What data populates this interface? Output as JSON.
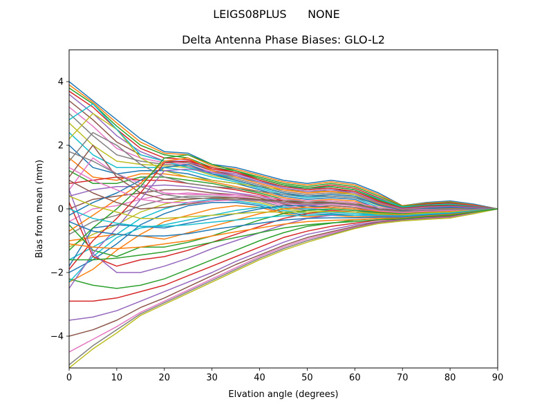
{
  "figure": {
    "suptitle": "LEIGS08PLUS      NONE"
  },
  "chart_data": {
    "type": "line",
    "title": "Delta Antenna Phase Biases: GLO-L2",
    "xlabel": "Elvation angle (degrees)",
    "ylabel": "Bias from mean (mm)",
    "xlim": [
      0,
      90
    ],
    "ylim": [
      -5,
      5
    ],
    "xticks": [
      0,
      10,
      20,
      30,
      40,
      50,
      60,
      70,
      80,
      90
    ],
    "yticks": [
      -4,
      -2,
      0,
      2,
      4
    ],
    "xtick_labels": [
      "0",
      "10",
      "20",
      "30",
      "40",
      "50",
      "60",
      "70",
      "80",
      "90"
    ],
    "ytick_labels": [
      "−4",
      "−2",
      "0",
      "2",
      "4"
    ],
    "grid": false,
    "legend": "none",
    "palette": [
      "#1f77b4",
      "#ff7f0e",
      "#2ca02c",
      "#d62728",
      "#9467bd",
      "#8c564b",
      "#e377c2",
      "#7f7f7f",
      "#bcbd22",
      "#17becf"
    ],
    "x": [
      0,
      5,
      10,
      15,
      20,
      25,
      30,
      35,
      40,
      45,
      50,
      55,
      60,
      65,
      70,
      75,
      80,
      85,
      90
    ],
    "series": [
      {
        "values": [
          4.0,
          3.4,
          2.8,
          2.2,
          1.8,
          1.75,
          1.4,
          1.3,
          1.1,
          0.9,
          0.8,
          0.9,
          0.8,
          0.5,
          0.1,
          0.2,
          0.25,
          0.15,
          0.0
        ]
      },
      {
        "values": [
          3.9,
          3.35,
          2.7,
          2.1,
          1.75,
          1.7,
          1.35,
          1.25,
          1.05,
          0.85,
          0.75,
          0.85,
          0.75,
          0.45,
          0.1,
          0.18,
          0.22,
          0.12,
          0.0
        ]
      },
      {
        "values": [
          3.8,
          3.3,
          2.6,
          2.0,
          1.7,
          1.6,
          1.3,
          1.2,
          1.0,
          0.8,
          0.7,
          0.8,
          0.7,
          0.4,
          0.08,
          0.16,
          0.2,
          0.1,
          0.0
        ]
      },
      {
        "values": [
          3.7,
          3.2,
          2.5,
          1.9,
          1.6,
          1.55,
          1.25,
          1.15,
          0.95,
          0.75,
          0.65,
          0.75,
          0.65,
          0.35,
          0.05,
          0.15,
          0.18,
          0.1,
          0.0
        ]
      },
      {
        "values": [
          3.6,
          3.0,
          2.3,
          1.8,
          1.5,
          1.5,
          1.2,
          1.1,
          0.9,
          0.7,
          0.6,
          0.7,
          0.6,
          0.3,
          0.05,
          0.12,
          0.15,
          0.08,
          0.0
        ]
      },
      {
        "values": [
          3.4,
          2.8,
          2.1,
          1.7,
          1.5,
          1.45,
          1.2,
          1.05,
          0.85,
          0.65,
          0.55,
          0.6,
          0.55,
          0.25,
          0.02,
          0.1,
          0.12,
          0.06,
          0.0
        ]
      },
      {
        "values": [
          3.2,
          2.6,
          1.9,
          1.6,
          1.45,
          1.4,
          1.15,
          1.0,
          0.8,
          0.6,
          0.5,
          0.55,
          0.5,
          0.2,
          0.0,
          0.08,
          0.1,
          0.05,
          0.0
        ]
      },
      {
        "values": [
          3.0,
          2.3,
          1.7,
          1.5,
          1.4,
          1.35,
          1.1,
          0.95,
          0.75,
          0.55,
          0.45,
          0.5,
          0.45,
          0.15,
          -0.02,
          0.06,
          0.08,
          0.04,
          0.0
        ]
      },
      {
        "values": [
          2.7,
          2.0,
          1.5,
          1.4,
          1.35,
          1.3,
          1.05,
          0.9,
          0.7,
          0.5,
          0.4,
          0.45,
          0.4,
          0.1,
          -0.04,
          0.04,
          0.06,
          0.03,
          0.0
        ]
      },
      {
        "values": [
          2.4,
          1.7,
          1.3,
          1.3,
          1.3,
          1.2,
          1.0,
          0.85,
          0.65,
          0.45,
          0.35,
          0.4,
          0.35,
          0.05,
          -0.05,
          0.02,
          0.04,
          0.02,
          0.0
        ]
      },
      {
        "values": [
          2.0,
          1.3,
          1.1,
          1.2,
          1.2,
          1.1,
          0.9,
          0.8,
          0.6,
          0.4,
          0.3,
          0.35,
          0.3,
          0.0,
          -0.06,
          0.0,
          0.02,
          0.01,
          0.0
        ]
      },
      {
        "values": [
          1.6,
          1.0,
          0.9,
          1.1,
          1.1,
          1.0,
          0.85,
          0.7,
          0.55,
          0.35,
          0.25,
          0.3,
          0.25,
          -0.02,
          -0.08,
          -0.02,
          0.0,
          0.0,
          0.0
        ]
      },
      {
        "values": [
          1.2,
          0.8,
          0.8,
          1.0,
          1.0,
          0.9,
          0.8,
          0.65,
          0.5,
          0.3,
          0.2,
          0.25,
          0.2,
          -0.05,
          -0.1,
          -0.04,
          -0.02,
          -0.01,
          0.0
        ]
      },
      {
        "values": [
          0.8,
          0.9,
          1.0,
          0.9,
          0.9,
          0.8,
          0.7,
          0.6,
          0.45,
          0.25,
          0.15,
          0.2,
          0.15,
          -0.08,
          -0.12,
          -0.06,
          -0.04,
          -0.02,
          0.0
        ]
      },
      {
        "values": [
          0.4,
          0.6,
          0.7,
          0.7,
          0.75,
          0.7,
          0.6,
          0.5,
          0.4,
          0.2,
          0.1,
          0.15,
          0.1,
          -0.1,
          -0.14,
          -0.08,
          -0.06,
          -0.03,
          0.0
        ]
      },
      {
        "values": [
          0.0,
          0.3,
          0.4,
          0.5,
          0.6,
          0.6,
          0.5,
          0.45,
          0.35,
          0.15,
          0.05,
          0.1,
          0.05,
          -0.12,
          -0.16,
          -0.1,
          -0.08,
          -0.04,
          0.0
        ]
      },
      {
        "values": [
          -0.4,
          0.0,
          0.1,
          0.3,
          0.45,
          0.5,
          0.45,
          0.4,
          0.3,
          0.1,
          0.0,
          0.05,
          0.0,
          -0.14,
          -0.18,
          -0.12,
          -0.1,
          -0.05,
          0.0
        ]
      },
      {
        "values": [
          -0.8,
          -0.4,
          -0.2,
          0.1,
          0.3,
          0.4,
          0.4,
          0.35,
          0.25,
          0.05,
          -0.05,
          0.0,
          -0.05,
          -0.16,
          -0.2,
          -0.14,
          -0.12,
          -0.06,
          0.0
        ]
      },
      {
        "values": [
          -1.2,
          -0.8,
          -0.5,
          -0.1,
          0.15,
          0.3,
          0.35,
          0.3,
          0.2,
          0.0,
          -0.1,
          -0.05,
          -0.1,
          -0.18,
          -0.22,
          -0.16,
          -0.14,
          -0.07,
          0.0
        ]
      },
      {
        "values": [
          -1.6,
          -1.2,
          -0.8,
          -0.3,
          0.0,
          0.2,
          0.3,
          0.25,
          0.15,
          -0.05,
          -0.15,
          -0.1,
          -0.15,
          -0.2,
          -0.24,
          -0.18,
          -0.16,
          -0.08,
          0.0
        ]
      },
      {
        "values": [
          -2.0,
          -1.6,
          -1.1,
          -0.5,
          -0.15,
          0.1,
          0.2,
          0.2,
          0.1,
          -0.1,
          -0.2,
          -0.15,
          -0.2,
          -0.22,
          -0.26,
          -0.2,
          -0.18,
          -0.09,
          0.0
        ]
      },
      {
        "values": [
          -2.3,
          -1.9,
          -1.3,
          -0.8,
          -0.4,
          -0.2,
          0.0,
          0.1,
          0.05,
          -0.15,
          -0.25,
          -0.2,
          -0.25,
          -0.25,
          -0.28,
          -0.22,
          -0.2,
          -0.1,
          0.0
        ]
      },
      {
        "values": [
          -2.2,
          -2.4,
          -2.5,
          -2.4,
          -2.2,
          -1.9,
          -1.6,
          -1.3,
          -1.0,
          -0.75,
          -0.55,
          -0.45,
          -0.35,
          -0.3,
          -0.3,
          -0.24,
          -0.22,
          -0.11,
          0.0
        ]
      },
      {
        "values": [
          -2.9,
          -2.9,
          -2.8,
          -2.6,
          -2.4,
          -2.1,
          -1.8,
          -1.5,
          -1.2,
          -0.9,
          -0.7,
          -0.55,
          -0.45,
          -0.35,
          -0.32,
          -0.26,
          -0.24,
          -0.12,
          0.0
        ]
      },
      {
        "values": [
          -3.5,
          -3.4,
          -3.2,
          -2.9,
          -2.6,
          -2.3,
          -2.0,
          -1.65,
          -1.35,
          -1.05,
          -0.8,
          -0.65,
          -0.5,
          -0.4,
          -0.34,
          -0.28,
          -0.25,
          -0.13,
          0.0
        ]
      },
      {
        "values": [
          -4.0,
          -3.8,
          -3.5,
          -3.1,
          -2.8,
          -2.45,
          -2.1,
          -1.75,
          -1.45,
          -1.15,
          -0.9,
          -0.72,
          -0.55,
          -0.42,
          -0.35,
          -0.3,
          -0.26,
          -0.14,
          0.0
        ]
      },
      {
        "values": [
          -4.5,
          -4.1,
          -3.7,
          -3.25,
          -2.9,
          -2.55,
          -2.2,
          -1.85,
          -1.5,
          -1.2,
          -0.95,
          -0.76,
          -0.58,
          -0.44,
          -0.36,
          -0.31,
          -0.27,
          -0.14,
          0.0
        ]
      },
      {
        "values": [
          -4.9,
          -4.3,
          -3.8,
          -3.3,
          -2.95,
          -2.6,
          -2.25,
          -1.9,
          -1.55,
          -1.25,
          -1.0,
          -0.8,
          -0.6,
          -0.45,
          -0.37,
          -0.32,
          -0.28,
          -0.15,
          0.0
        ]
      },
      {
        "values": [
          -5.0,
          -4.4,
          -3.9,
          -3.35,
          -3.0,
          -2.65,
          -2.3,
          -1.95,
          -1.6,
          -1.3,
          -1.05,
          -0.83,
          -0.62,
          -0.46,
          -0.38,
          -0.33,
          -0.29,
          -0.15,
          0.0
        ]
      },
      {
        "values": [
          -2.3,
          -1.5,
          -0.9,
          -0.6,
          -0.5,
          -0.35,
          -0.2,
          -0.05,
          0.05,
          0.05,
          0.0,
          -0.05,
          -0.1,
          -0.2,
          -0.25,
          -0.2,
          -0.18,
          -0.09,
          0.0
        ]
      },
      {
        "values": [
          -1.8,
          -0.6,
          -0.5,
          -0.55,
          -0.6,
          -0.45,
          -0.3,
          -0.15,
          0.0,
          0.1,
          0.1,
          0.05,
          0.0,
          -0.1,
          -0.15,
          -0.12,
          -0.1,
          -0.05,
          0.0
        ]
      },
      {
        "values": [
          -1.0,
          -0.9,
          -0.8,
          -0.85,
          -0.95,
          -0.75,
          -0.55,
          -0.35,
          -0.15,
          0.0,
          0.05,
          0.05,
          0.0,
          -0.08,
          -0.12,
          -0.1,
          -0.08,
          -0.04,
          0.0
        ]
      },
      {
        "values": [
          -0.5,
          -1.3,
          -1.5,
          -1.2,
          -1.2,
          -1.05,
          -0.85,
          -0.6,
          -0.35,
          -0.15,
          -0.05,
          0.0,
          -0.05,
          -0.12,
          -0.16,
          -0.12,
          -0.1,
          -0.05,
          0.0
        ]
      },
      {
        "values": [
          0.2,
          -1.5,
          -1.8,
          -1.6,
          -1.5,
          -1.3,
          -1.05,
          -0.8,
          -0.55,
          -0.3,
          -0.15,
          -0.05,
          -0.1,
          -0.15,
          -0.2,
          -0.15,
          -0.12,
          -0.06,
          0.0
        ]
      },
      {
        "values": [
          0.6,
          -1.4,
          -2.0,
          -2.0,
          -1.8,
          -1.55,
          -1.25,
          -1.0,
          -0.75,
          -0.5,
          -0.3,
          -0.2,
          -0.2,
          -0.22,
          -0.25,
          -0.2,
          -0.16,
          -0.08,
          0.0
        ]
      },
      {
        "values": [
          1.0,
          2.0,
          1.0,
          0.5,
          0.3,
          0.3,
          0.35,
          0.35,
          0.3,
          0.25,
          0.2,
          0.2,
          0.15,
          0.0,
          -0.05,
          -0.05,
          -0.04,
          -0.02,
          0.0
        ]
      },
      {
        "values": [
          0.6,
          1.6,
          1.1,
          0.8,
          0.5,
          0.45,
          0.45,
          0.45,
          0.4,
          0.3,
          0.25,
          0.25,
          0.2,
          0.05,
          -0.03,
          -0.02,
          -0.02,
          -0.01,
          0.0
        ]
      },
      {
        "values": [
          1.5,
          2.4,
          2.0,
          1.4,
          1.0,
          0.8,
          0.7,
          0.65,
          0.55,
          0.45,
          0.4,
          0.4,
          0.35,
          0.15,
          0.0,
          0.04,
          0.05,
          0.02,
          0.0
        ]
      },
      {
        "values": [
          2.2,
          3.0,
          2.5,
          1.6,
          1.2,
          1.0,
          0.9,
          0.8,
          0.7,
          0.6,
          0.55,
          0.55,
          0.45,
          0.22,
          0.04,
          0.08,
          0.1,
          0.05,
          0.0
        ]
      },
      {
        "values": [
          2.8,
          3.3,
          2.5,
          1.7,
          1.5,
          1.3,
          1.1,
          1.0,
          0.85,
          0.7,
          0.65,
          0.7,
          0.6,
          0.32,
          0.06,
          0.12,
          0.15,
          0.07,
          0.0
        ]
      },
      {
        "values": [
          -0.2,
          0.2,
          0.5,
          0.9,
          1.3,
          1.4,
          1.1,
          0.9,
          0.7,
          0.5,
          0.4,
          0.45,
          0.4,
          0.12,
          -0.04,
          0.03,
          0.05,
          0.02,
          0.0
        ]
      },
      {
        "values": [
          -0.7,
          -0.2,
          0.3,
          0.8,
          1.5,
          1.6,
          1.2,
          1.0,
          0.8,
          0.6,
          0.5,
          0.55,
          0.5,
          0.18,
          -0.02,
          0.05,
          0.08,
          0.04,
          0.0
        ]
      },
      {
        "values": [
          -1.3,
          -0.6,
          0.0,
          0.7,
          1.6,
          1.7,
          1.4,
          1.2,
          0.95,
          0.75,
          0.65,
          0.7,
          0.6,
          0.28,
          0.03,
          0.1,
          0.12,
          0.06,
          0.0
        ]
      },
      {
        "values": [
          -1.9,
          -1.0,
          -0.3,
          0.5,
          1.45,
          1.5,
          1.3,
          1.15,
          0.9,
          0.7,
          0.6,
          0.65,
          0.55,
          0.24,
          0.02,
          0.08,
          0.1,
          0.05,
          0.0
        ]
      },
      {
        "values": [
          -2.5,
          -1.4,
          -0.6,
          0.3,
          1.2,
          1.25,
          1.15,
          1.05,
          0.85,
          0.65,
          0.55,
          0.6,
          0.5,
          0.2,
          0.0,
          0.06,
          0.08,
          0.04,
          0.0
        ]
      },
      {
        "values": [
          0.9,
          0.5,
          0.2,
          0.0,
          0.05,
          0.15,
          0.25,
          0.3,
          0.28,
          0.2,
          0.15,
          0.18,
          0.12,
          -0.05,
          -0.1,
          -0.06,
          -0.04,
          -0.02,
          0.0
        ]
      },
      {
        "values": [
          1.3,
          0.9,
          0.6,
          0.3,
          0.2,
          0.2,
          0.25,
          0.28,
          0.25,
          0.18,
          0.12,
          0.15,
          0.1,
          -0.06,
          -0.11,
          -0.07,
          -0.05,
          -0.02,
          0.0
        ]
      },
      {
        "values": [
          1.8,
          1.5,
          1.1,
          0.7,
          0.45,
          0.35,
          0.32,
          0.3,
          0.27,
          0.2,
          0.15,
          0.18,
          0.13,
          -0.03,
          -0.08,
          -0.04,
          -0.02,
          -0.01,
          0.0
        ]
      },
      {
        "values": [
          0.4,
          0.1,
          -0.1,
          -0.3,
          -0.3,
          -0.25,
          -0.2,
          -0.15,
          -0.1,
          -0.1,
          -0.1,
          -0.08,
          -0.1,
          -0.15,
          -0.18,
          -0.13,
          -0.1,
          -0.05,
          0.0
        ]
      },
      {
        "values": [
          0.0,
          -0.3,
          -0.45,
          -0.55,
          -0.55,
          -0.5,
          -0.42,
          -0.35,
          -0.28,
          -0.22,
          -0.2,
          -0.18,
          -0.2,
          -0.2,
          -0.22,
          -0.16,
          -0.13,
          -0.06,
          0.0
        ]
      },
      {
        "values": [
          -0.4,
          -0.7,
          -0.8,
          -0.85,
          -0.85,
          -0.78,
          -0.65,
          -0.55,
          -0.45,
          -0.35,
          -0.3,
          -0.28,
          -0.28,
          -0.26,
          -0.26,
          -0.2,
          -0.16,
          -0.08,
          0.0
        ]
      },
      {
        "values": [
          -1.1,
          -1.2,
          -1.25,
          -1.2,
          -1.1,
          -1.0,
          -0.85,
          -0.72,
          -0.6,
          -0.48,
          -0.4,
          -0.36,
          -0.34,
          -0.3,
          -0.29,
          -0.22,
          -0.18,
          -0.09,
          0.0
        ]
      },
      {
        "values": [
          -1.6,
          -1.6,
          -1.55,
          -1.45,
          -1.35,
          -1.2,
          -1.05,
          -0.9,
          -0.75,
          -0.6,
          -0.5,
          -0.44,
          -0.4,
          -0.34,
          -0.31,
          -0.24,
          -0.2,
          -0.1,
          0.0
        ]
      }
    ]
  }
}
